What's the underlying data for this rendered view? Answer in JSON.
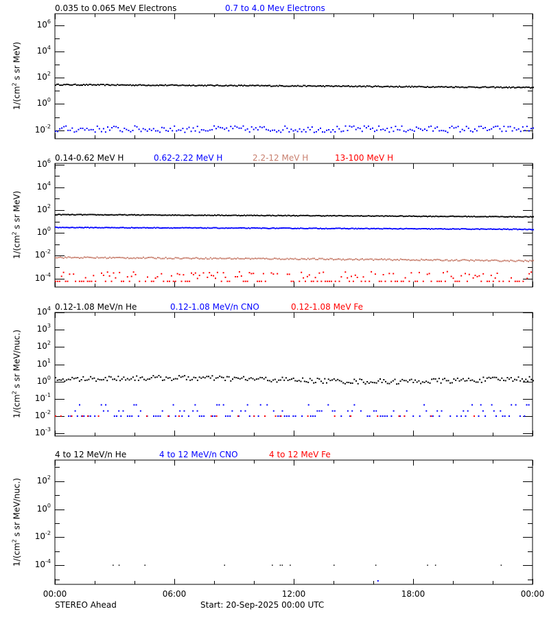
{
  "colors": {
    "black": "#000000",
    "blue": "#0000ff",
    "tan": "#c87f6e",
    "red": "#ff0000"
  },
  "footer": {
    "spacecraft": "STEREO Ahead",
    "start": "Start: 20-Sep-2025 00:00 UTC"
  },
  "x_axis": {
    "ticks": [
      "00:00",
      "06:00",
      "12:00",
      "18:00",
      "00:00"
    ]
  },
  "chart_data": [
    {
      "type": "scatter",
      "title": "Electrons",
      "ylabel": "1/(cm² s sr MeV)",
      "yscale": "log",
      "ylim": [
        0.001,
        10000000
      ],
      "yticks": [
        "10^6",
        "10^4",
        "10^2",
        "10^0",
        "10^-2"
      ],
      "xlabel": "",
      "xlim": [
        "00:00",
        "00:00 (+24h)"
      ],
      "legend": [
        {
          "name": "0.035 to 0.065 MeV Electrons",
          "color": "#000000"
        },
        {
          "name": "0.7 to 4.0 Mev Electrons",
          "color": "#0000ff"
        }
      ],
      "series": [
        {
          "name": "0.035 to 0.065 MeV Electrons",
          "approx_level": 25,
          "trend": "slowly declining 30 to 18"
        },
        {
          "name": "0.7 to 4.0 Mev Electrons",
          "approx_level": 0.012,
          "trend": "flat, scattered 0.005-0.03"
        }
      ]
    },
    {
      "type": "scatter",
      "title": "Protons (H)",
      "ylabel": "1/(cm² s sr MeV)",
      "yscale": "log",
      "ylim": [
        3e-05,
        1000000
      ],
      "yticks": [
        "10^6",
        "10^4",
        "10^2",
        "10^0",
        "10^-2",
        "10^-4"
      ],
      "legend": [
        {
          "name": "0.14-0.62 MeV H",
          "color": "#000000"
        },
        {
          "name": "0.62-2.22 MeV H",
          "color": "#0000ff"
        },
        {
          "name": "2.2-12 MeV H",
          "color": "#c87f6e"
        },
        {
          "name": "13-100 MeV H",
          "color": "#ff0000"
        }
      ],
      "series": [
        {
          "name": "0.14-0.62 MeV H",
          "approx_level": 35,
          "trend": "slowly declining 40 to 25"
        },
        {
          "name": "0.62-2.22 MeV H",
          "approx_level": 2.5,
          "trend": "slowly declining 3 to 1.8"
        },
        {
          "name": "2.2-12 MeV H",
          "approx_level": 0.005,
          "trend": "declining 0.007 to 0.003"
        },
        {
          "name": "13-100 MeV H",
          "approx_level": 0.0001,
          "trend": "scattered 0.00006-0.0003"
        }
      ]
    },
    {
      "type": "scatter",
      "title": "0.12-1.08 MeV/n ions",
      "ylabel": "1/(cm² s sr MeV/nuc.)",
      "yscale": "log",
      "ylim": [
        0.001,
        10000
      ],
      "yticks": [
        "10^4",
        "10^3",
        "10^2",
        "10^1",
        "10^0",
        "10^-1",
        "10^-2",
        "10^-3"
      ],
      "legend": [
        {
          "name": "0.12-1.08 MeV/n He",
          "color": "#000000"
        },
        {
          "name": "0.12-1.08 MeV/n CNO",
          "color": "#0000ff"
        },
        {
          "name": "0.12-1.08 MeV Fe",
          "color": "#ff0000"
        }
      ],
      "series": [
        {
          "name": "0.12-1.08 MeV/n He",
          "approx_level": 1.3,
          "trend": "0.6-2.5, peak ~2.5 near 03:00"
        },
        {
          "name": "0.12-1.08 MeV/n CNO",
          "approx_level": 0.012,
          "trend": "sparse 0.01-0.05"
        },
        {
          "name": "0.12-1.08 MeV Fe",
          "approx_level": 0.01,
          "trend": "sparse points at 0.01"
        }
      ]
    },
    {
      "type": "scatter",
      "title": "4 to 12 MeV/n ions",
      "ylabel": "1/(cm² s sr MeV/nuc.)",
      "yscale": "log",
      "ylim": [
        3e-06,
        1000
      ],
      "yticks": [
        "10^2",
        "10^0",
        "10^-2",
        "10^-4"
      ],
      "legend": [
        {
          "name": "4 to 12 MeV/n He",
          "color": "#000000"
        },
        {
          "name": "4 to 12 MeV/n CNO",
          "color": "#0000ff"
        },
        {
          "name": "4 to 12 MeV Fe",
          "color": "#ff0000"
        }
      ],
      "series": [
        {
          "name": "4 to 12 MeV/n He",
          "approx_level": 0.0001,
          "points_hours": [
            2.9,
            3.2,
            4.5,
            8.5,
            10.9,
            11.3,
            11.4,
            11.8,
            14.0,
            16.1,
            18.7,
            19.1,
            22.4
          ]
        },
        {
          "name": "4 to 12 MeV/n CNO",
          "approx_level": 1e-05,
          "points_hours": [
            16.2
          ]
        },
        {
          "name": "4 to 12 MeV Fe",
          "points_hours": []
        }
      ]
    }
  ]
}
